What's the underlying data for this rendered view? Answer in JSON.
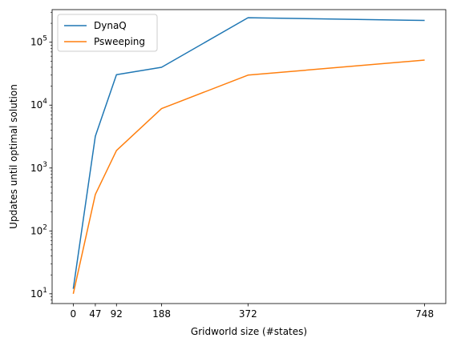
{
  "chart_data": {
    "type": "line",
    "title": "",
    "xlabel": "Gridworld size (#states)",
    "ylabel": "Updates until optimal solution",
    "x": [
      0,
      47,
      92,
      188,
      372,
      748
    ],
    "xticks": [
      "0",
      "47",
      "92",
      "188",
      "372",
      "748"
    ],
    "xlim": [
      -45,
      793
    ],
    "yscale": "log",
    "ylim": [
      7,
      330000
    ],
    "yticks": [
      {
        "value": 10,
        "base": "10",
        "exp": "1"
      },
      {
        "value": 100,
        "base": "10",
        "exp": "2"
      },
      {
        "value": 1000,
        "base": "10",
        "exp": "3"
      },
      {
        "value": 10000,
        "base": "10",
        "exp": "4"
      },
      {
        "value": 100000,
        "base": "10",
        "exp": "5"
      }
    ],
    "grid": false,
    "legend_position": "top-left",
    "series": [
      {
        "name": "DynaQ",
        "color": "#1f77b4",
        "values": [
          12,
          3200,
          30500,
          40000,
          245000,
          222000
        ]
      },
      {
        "name": "Psweeping",
        "color": "#ff7f0e",
        "values": [
          10,
          380,
          1900,
          8800,
          30000,
          52000
        ]
      }
    ]
  }
}
